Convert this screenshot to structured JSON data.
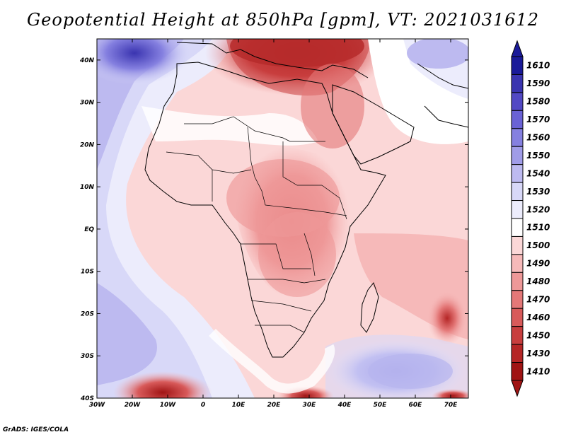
{
  "title": "Geopotential Height at 850hPa [gpm], VT: 2021031612",
  "credit": "GrADS: IGES/COLA",
  "map": {
    "lon_range": [
      -30,
      75
    ],
    "lat_range": [
      -40,
      45
    ],
    "x_ticks": [
      "30W",
      "20W",
      "10W",
      "0",
      "10E",
      "20E",
      "30E",
      "40E",
      "50E",
      "60E",
      "70E"
    ],
    "x_tick_values": [
      -30,
      -20,
      -10,
      0,
      10,
      20,
      30,
      40,
      50,
      60,
      70
    ],
    "y_ticks": [
      "40S",
      "30S",
      "20S",
      "10S",
      "EQ",
      "10N",
      "20N",
      "30N",
      "40N"
    ],
    "y_tick_values": [
      -40,
      -30,
      -20,
      -10,
      0,
      10,
      20,
      30,
      40
    ]
  },
  "colorbar": {
    "levels": [
      "1610",
      "1590",
      "1580",
      "1570",
      "1560",
      "1550",
      "1540",
      "1530",
      "1520",
      "1510",
      "1500",
      "1490",
      "1480",
      "1470",
      "1460",
      "1450",
      "1430",
      "1410"
    ],
    "colors": [
      "#1a1a99",
      "#3a34b0",
      "#5248c4",
      "#6a62d6",
      "#8580e0",
      "#a09ce8",
      "#bdbaf0",
      "#d8d8f8",
      "#ececfc",
      "#ffffff",
      "#fbd7d7",
      "#f6b9b9",
      "#ee9898",
      "#e47878",
      "#d85a5a",
      "#c83e3e",
      "#b52626",
      "#a01414"
    ]
  }
}
